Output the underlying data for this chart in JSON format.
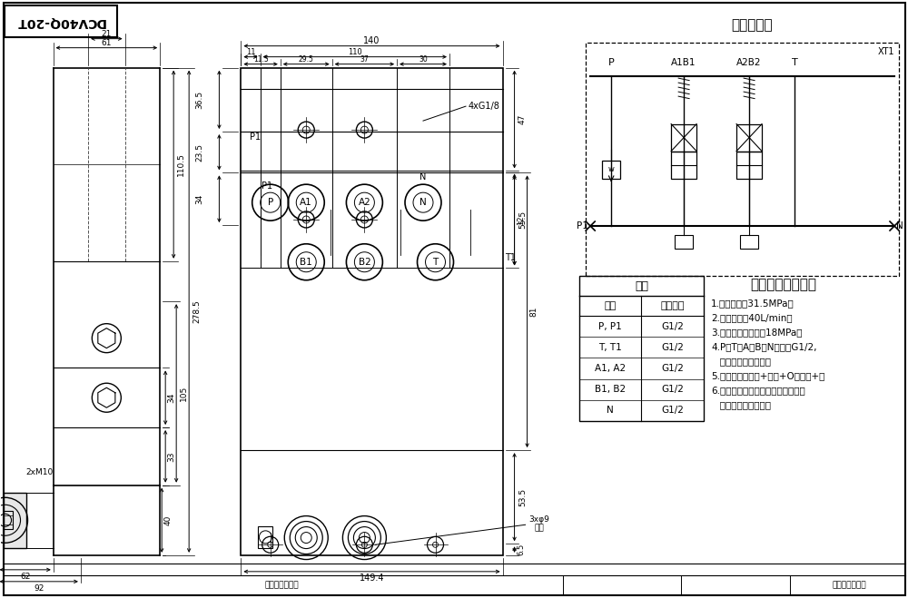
{
  "bg": "#ffffff",
  "lc": "#000000",
  "title_box_text": "DCV40Q-20T",
  "hydraulic_title": "液压原理图",
  "tech_title": "技术要求和参数：",
  "table_header": "阀体",
  "table_col1_header": "接口",
  "table_col2_header": "螺纪规格",
  "table_rows": [
    [
      "P, P1",
      "G1/2"
    ],
    [
      "T, T1",
      "G1/2"
    ],
    [
      "A1, A2",
      "G1/2"
    ],
    [
      "B1, B2",
      "G1/2"
    ],
    [
      "N",
      "G1/2"
    ]
  ],
  "tech_lines": [
    "1.额定压力：31.5MPa；",
    "2.额定流量：40L/min，",
    "3.安全阀调定压力：18MPa；",
    "4.P、T、A、B、N口均为G1/2,",
    "   油口均为平面密封；",
    "5.控制方式：气控+手动+O型阀芒+弹",
    "6.阀体表面雾化处理，安全阀及螺栓",
    "   支架墙面为铁本色。"
  ],
  "bottom_text_left": "产品名称及代号",
  "bottom_text_right": "单位名称及代号"
}
